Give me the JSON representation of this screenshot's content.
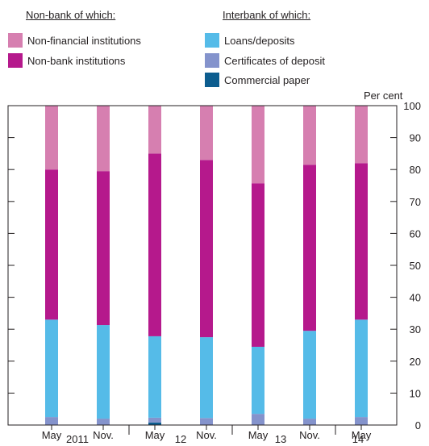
{
  "legend": {
    "left_heading": "Non-bank of which:",
    "right_heading": "Interbank of which:",
    "items": [
      {
        "label": "Non-financial institutions",
        "color": "#d67fb0"
      },
      {
        "label": "Non-bank institutions",
        "color": "#b5198c"
      },
      {
        "label": "Loans/deposits",
        "color": "#55bbe8"
      },
      {
        "label": "Certificates of deposit",
        "color": "#8493cc"
      },
      {
        "label": "Commercial paper",
        "color": "#0d5d8f"
      }
    ]
  },
  "chart_data": {
    "type": "bar",
    "stacked": true,
    "unit_label": "Per cent",
    "ylim": [
      0,
      100
    ],
    "yticks": [
      0,
      10,
      20,
      30,
      40,
      50,
      60,
      70,
      80,
      90,
      100
    ],
    "categories": [
      "May 2011",
      "Nov. 2011",
      "May 2012",
      "Nov. 2012",
      "May 2013",
      "Nov. 2013",
      "May 2014"
    ],
    "x_tick_labels": [
      "May",
      "Nov.",
      "May",
      "Nov.",
      "May",
      "Nov.",
      "May"
    ],
    "x_year_labels": [
      "2011",
      "12",
      "13",
      "14"
    ],
    "series": [
      {
        "name": "Commercial paper",
        "color": "#0d5d8f",
        "values": [
          0,
          0,
          0.8,
          0,
          0,
          0,
          0
        ]
      },
      {
        "name": "Certificates of deposit",
        "color": "#8493cc",
        "values": [
          2.5,
          2.0,
          1.5,
          2.2,
          3.5,
          2.0,
          2.5
        ]
      },
      {
        "name": "Loans/deposits",
        "color": "#55bbe8",
        "values": [
          30.5,
          29.3,
          25.5,
          25.3,
          21.0,
          27.5,
          30.5
        ]
      },
      {
        "name": "Non-bank institutions",
        "color": "#b5198c",
        "values": [
          47.0,
          48.2,
          57.2,
          55.5,
          51.2,
          52.0,
          49.0
        ]
      },
      {
        "name": "Non-financial institutions",
        "color": "#d67fb0",
        "values": [
          20.0,
          20.5,
          15.0,
          17.0,
          24.3,
          18.5,
          18.0
        ]
      }
    ]
  }
}
